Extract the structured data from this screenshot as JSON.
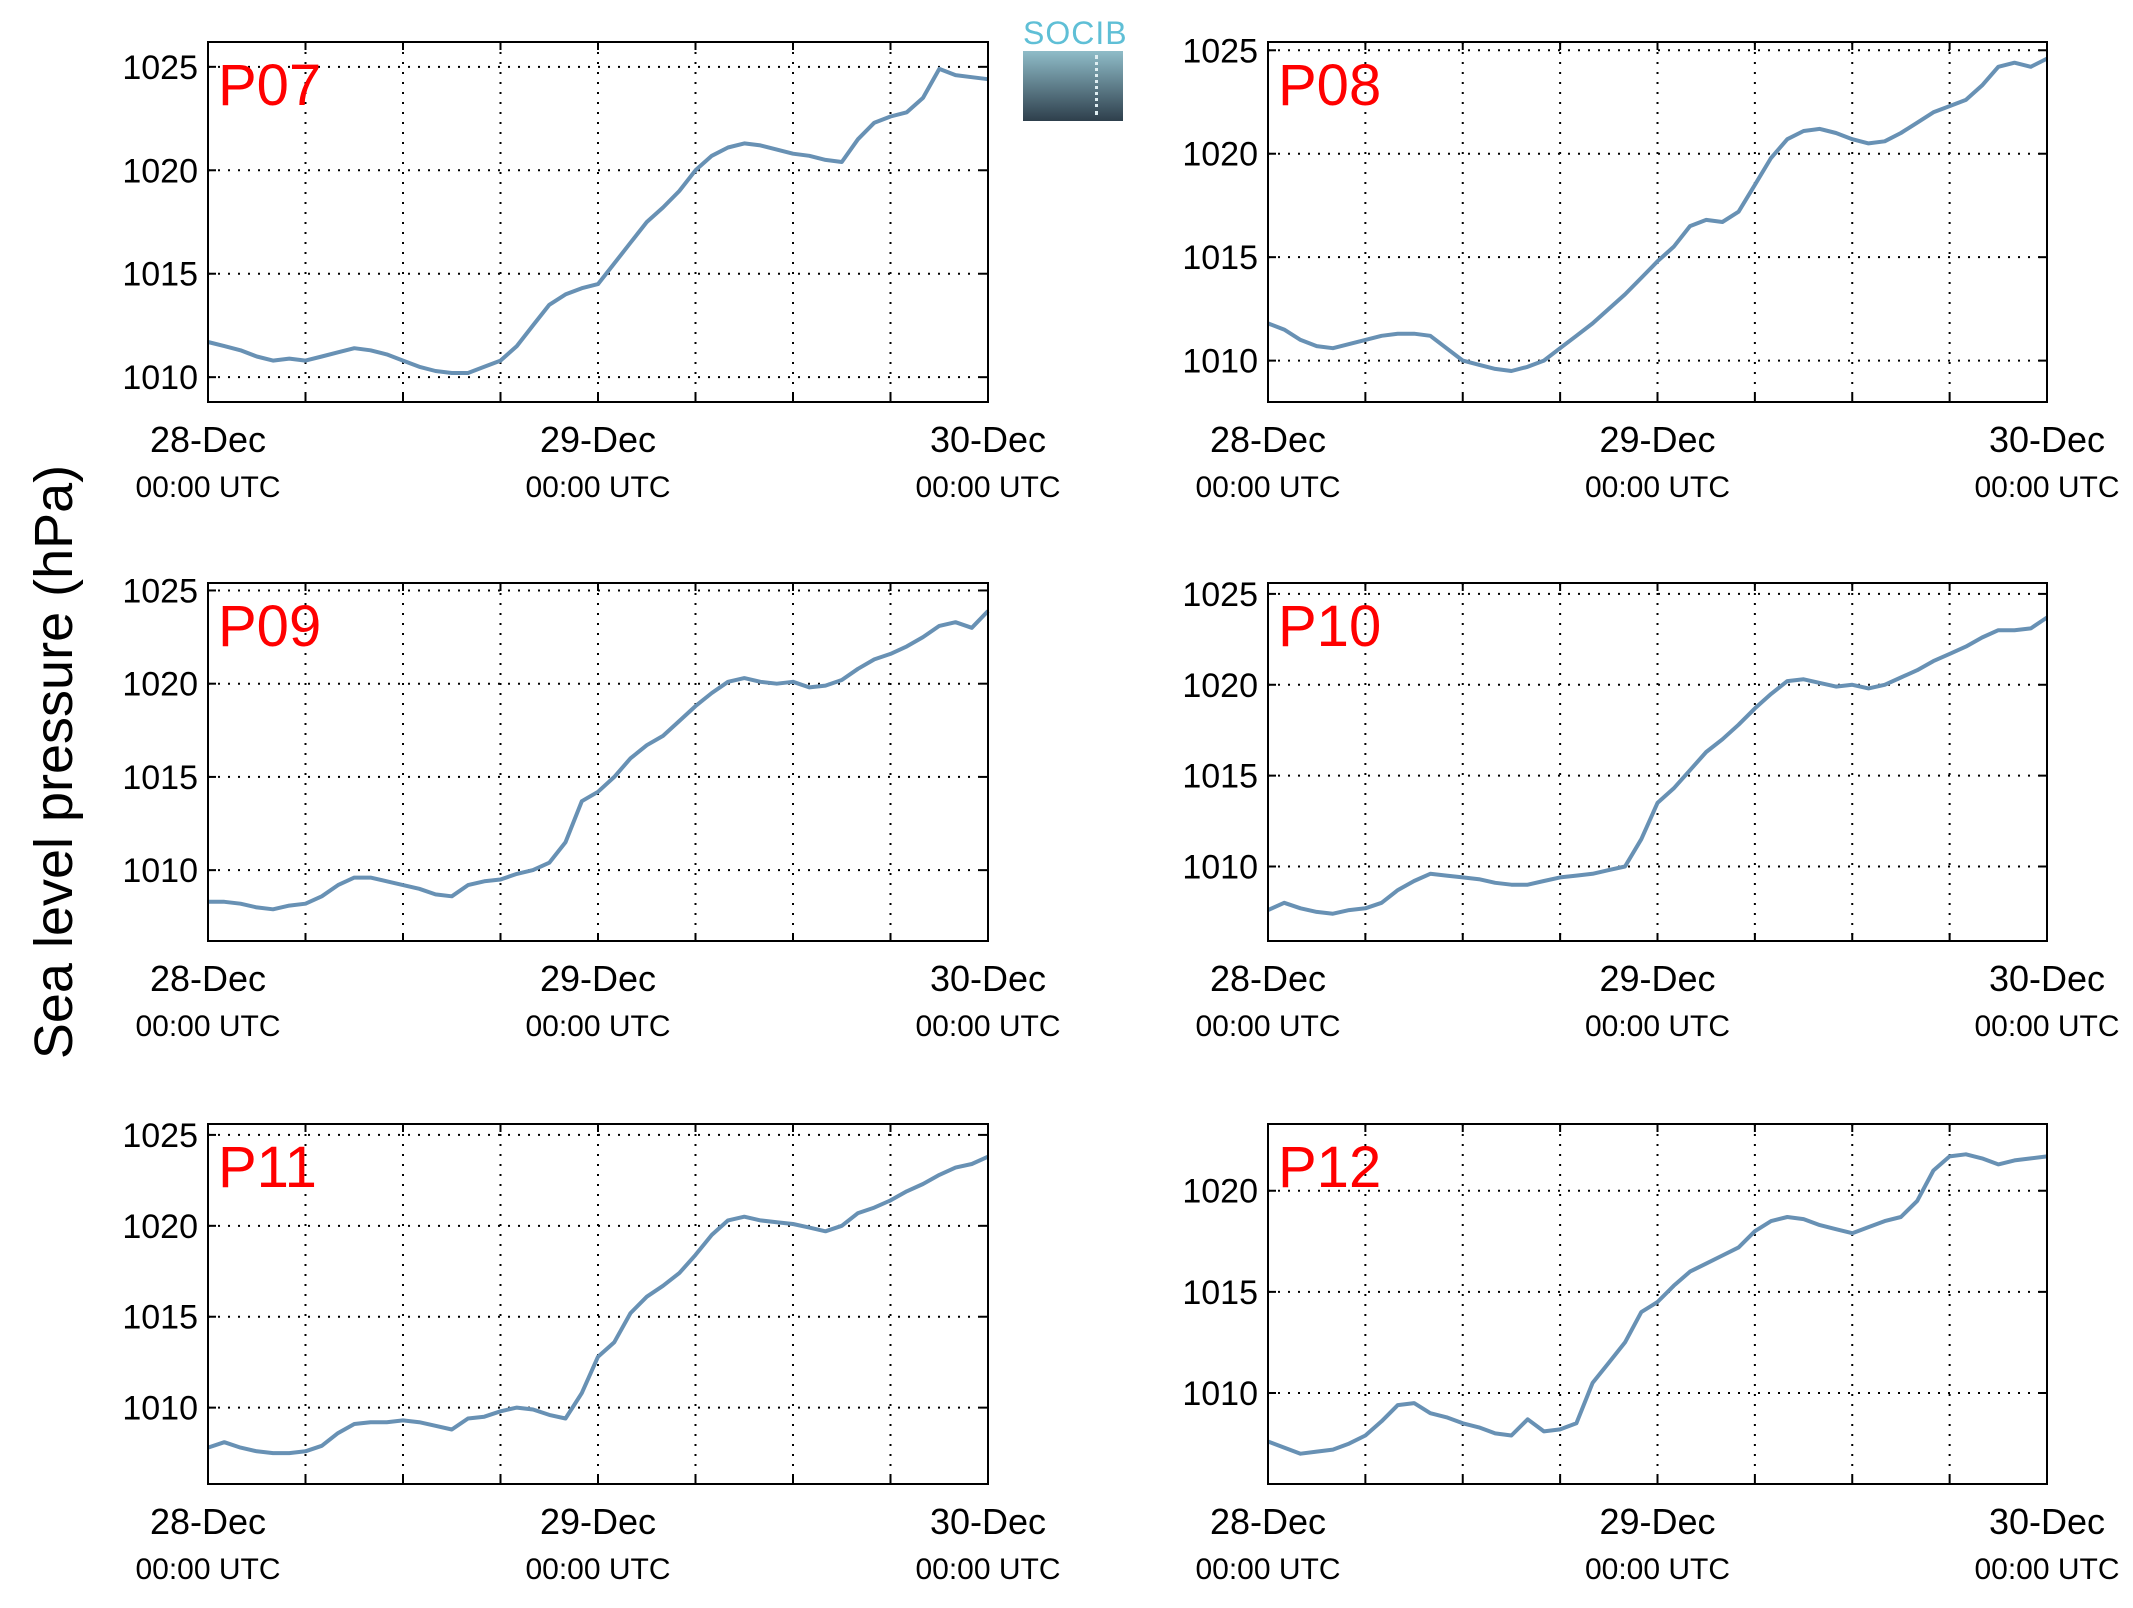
{
  "ylabel": "Sea level pressure (hPa)",
  "logo": {
    "text": "SOCIB"
  },
  "colors": {
    "line": "#6891b4",
    "panel_label": "#ff0000",
    "axis": "#000000",
    "grid": "#000000"
  },
  "chart_data": [
    {
      "type": "line",
      "label": "P07",
      "yticks": [
        1010,
        1015,
        1020,
        1025
      ],
      "ylim": [
        1008.8,
        1026.2
      ],
      "xlim": [
        0,
        48
      ],
      "xticks": [
        {
          "x": 0,
          "date": "28-Dec",
          "time": "00:00 UTC"
        },
        {
          "x": 24,
          "date": "29-Dec",
          "time": "00:00 UTC"
        },
        {
          "x": 48,
          "date": "30-Dec",
          "time": "00:00 UTC"
        }
      ],
      "grid": true,
      "series": [
        {
          "x": [
            0,
            1,
            2,
            3,
            4,
            5,
            6,
            7,
            8,
            9,
            10,
            11,
            12,
            13,
            14,
            15,
            16,
            17,
            18,
            19,
            20,
            21,
            22,
            23,
            24,
            25,
            26,
            27,
            28,
            29,
            30,
            31,
            32,
            33,
            34,
            35,
            36,
            37,
            38,
            39,
            40,
            41,
            42,
            43,
            44,
            45,
            46,
            47,
            48
          ],
          "y": [
            1011.7,
            1011.5,
            1011.3,
            1011.0,
            1010.8,
            1010.9,
            1010.8,
            1011.0,
            1011.2,
            1011.4,
            1011.3,
            1011.1,
            1010.8,
            1010.5,
            1010.3,
            1010.2,
            1010.2,
            1010.5,
            1010.8,
            1011.5,
            1012.5,
            1013.5,
            1014.0,
            1014.3,
            1014.5,
            1015.5,
            1016.5,
            1017.5,
            1018.2,
            1019.0,
            1020.0,
            1020.7,
            1021.1,
            1021.3,
            1021.2,
            1021.0,
            1020.8,
            1020.7,
            1020.5,
            1020.4,
            1021.5,
            1022.3,
            1022.6,
            1022.8,
            1023.5,
            1024.9,
            1024.6,
            1024.5,
            1024.4
          ]
        }
      ]
    },
    {
      "type": "line",
      "label": "P08",
      "yticks": [
        1010,
        1015,
        1020,
        1025
      ],
      "ylim": [
        1008.0,
        1025.4
      ],
      "xlim": [
        0,
        48
      ],
      "xticks": [
        {
          "x": 0,
          "date": "28-Dec",
          "time": "00:00 UTC"
        },
        {
          "x": 24,
          "date": "29-Dec",
          "time": "00:00 UTC"
        },
        {
          "x": 48,
          "date": "30-Dec",
          "time": "00:00 UTC"
        }
      ],
      "grid": true,
      "series": [
        {
          "x": [
            0,
            1,
            2,
            3,
            4,
            5,
            6,
            7,
            8,
            9,
            10,
            11,
            12,
            13,
            14,
            15,
            16,
            17,
            18,
            19,
            20,
            21,
            22,
            23,
            24,
            25,
            26,
            27,
            28,
            29,
            30,
            31,
            32,
            33,
            34,
            35,
            36,
            37,
            38,
            39,
            40,
            41,
            42,
            43,
            44,
            45,
            46,
            47,
            48
          ],
          "y": [
            1011.8,
            1011.5,
            1011.0,
            1010.7,
            1010.6,
            1010.8,
            1011.0,
            1011.2,
            1011.3,
            1011.3,
            1011.2,
            1010.6,
            1010.0,
            1009.8,
            1009.6,
            1009.5,
            1009.7,
            1010.0,
            1010.6,
            1011.2,
            1011.8,
            1012.5,
            1013.2,
            1014.0,
            1014.8,
            1015.5,
            1016.5,
            1016.8,
            1016.7,
            1017.2,
            1018.5,
            1019.8,
            1020.7,
            1021.1,
            1021.2,
            1021.0,
            1020.7,
            1020.5,
            1020.6,
            1021.0,
            1021.5,
            1022.0,
            1022.3,
            1022.6,
            1023.3,
            1024.2,
            1024.4,
            1024.2,
            1024.6
          ]
        }
      ]
    },
    {
      "type": "line",
      "label": "P09",
      "yticks": [
        1010,
        1015,
        1020,
        1025
      ],
      "ylim": [
        1006.2,
        1025.4
      ],
      "xlim": [
        0,
        48
      ],
      "xticks": [
        {
          "x": 0,
          "date": "28-Dec",
          "time": "00:00 UTC"
        },
        {
          "x": 24,
          "date": "29-Dec",
          "time": "00:00 UTC"
        },
        {
          "x": 48,
          "date": "30-Dec",
          "time": "00:00 UTC"
        }
      ],
      "grid": true,
      "series": [
        {
          "x": [
            0,
            1,
            2,
            3,
            4,
            5,
            6,
            7,
            8,
            9,
            10,
            11,
            12,
            13,
            14,
            15,
            16,
            17,
            18,
            19,
            20,
            21,
            22,
            23,
            24,
            25,
            26,
            27,
            28,
            29,
            30,
            31,
            32,
            33,
            34,
            35,
            36,
            37,
            38,
            39,
            40,
            41,
            42,
            43,
            44,
            45,
            46,
            47,
            48
          ],
          "y": [
            1008.3,
            1008.3,
            1008.2,
            1008.0,
            1007.9,
            1008.1,
            1008.2,
            1008.6,
            1009.2,
            1009.6,
            1009.6,
            1009.4,
            1009.2,
            1009.0,
            1008.7,
            1008.6,
            1009.2,
            1009.4,
            1009.5,
            1009.8,
            1010.0,
            1010.4,
            1011.5,
            1013.7,
            1014.2,
            1015.0,
            1016.0,
            1016.7,
            1017.2,
            1018.0,
            1018.8,
            1019.5,
            1020.1,
            1020.3,
            1020.1,
            1020.0,
            1020.1,
            1019.8,
            1019.9,
            1020.2,
            1020.8,
            1021.3,
            1021.6,
            1022.0,
            1022.5,
            1023.1,
            1023.3,
            1023.0,
            1023.9
          ]
        }
      ]
    },
    {
      "type": "line",
      "label": "P10",
      "yticks": [
        1010,
        1015,
        1020,
        1025
      ],
      "ylim": [
        1005.9,
        1025.6
      ],
      "xlim": [
        0,
        48
      ],
      "xticks": [
        {
          "x": 0,
          "date": "28-Dec",
          "time": "00:00 UTC"
        },
        {
          "x": 24,
          "date": "29-Dec",
          "time": "00:00 UTC"
        },
        {
          "x": 48,
          "date": "30-Dec",
          "time": "00:00 UTC"
        }
      ],
      "grid": true,
      "series": [
        {
          "x": [
            0,
            1,
            2,
            3,
            4,
            5,
            6,
            7,
            8,
            9,
            10,
            11,
            12,
            13,
            14,
            15,
            16,
            17,
            18,
            19,
            20,
            21,
            22,
            23,
            24,
            25,
            26,
            27,
            28,
            29,
            30,
            31,
            32,
            33,
            34,
            35,
            36,
            37,
            38,
            39,
            40,
            41,
            42,
            43,
            44,
            45,
            46,
            47,
            48
          ],
          "y": [
            1007.6,
            1008.0,
            1007.7,
            1007.5,
            1007.4,
            1007.6,
            1007.7,
            1008.0,
            1008.7,
            1009.2,
            1009.6,
            1009.5,
            1009.4,
            1009.3,
            1009.1,
            1009.0,
            1009.0,
            1009.2,
            1009.4,
            1009.5,
            1009.6,
            1009.8,
            1010.0,
            1011.5,
            1013.5,
            1014.3,
            1015.3,
            1016.3,
            1017.0,
            1017.8,
            1018.7,
            1019.5,
            1020.2,
            1020.3,
            1020.1,
            1019.9,
            1020.0,
            1019.8,
            1020.0,
            1020.4,
            1020.8,
            1021.3,
            1021.7,
            1022.1,
            1022.6,
            1023.0,
            1023.0,
            1023.1,
            1023.7
          ]
        }
      ]
    },
    {
      "type": "line",
      "label": "P11",
      "yticks": [
        1010,
        1015,
        1020,
        1025
      ],
      "ylim": [
        1005.8,
        1025.6
      ],
      "xlim": [
        0,
        48
      ],
      "xticks": [
        {
          "x": 0,
          "date": "28-Dec",
          "time": "00:00 UTC"
        },
        {
          "x": 24,
          "date": "29-Dec",
          "time": "00:00 UTC"
        },
        {
          "x": 48,
          "date": "30-Dec",
          "time": "00:00 UTC"
        }
      ],
      "grid": true,
      "series": [
        {
          "x": [
            0,
            1,
            2,
            3,
            4,
            5,
            6,
            7,
            8,
            9,
            10,
            11,
            12,
            13,
            14,
            15,
            16,
            17,
            18,
            19,
            20,
            21,
            22,
            23,
            24,
            25,
            26,
            27,
            28,
            29,
            30,
            31,
            32,
            33,
            34,
            35,
            36,
            37,
            38,
            39,
            40,
            41,
            42,
            43,
            44,
            45,
            46,
            47,
            48
          ],
          "y": [
            1007.8,
            1008.1,
            1007.8,
            1007.6,
            1007.5,
            1007.5,
            1007.6,
            1007.9,
            1008.6,
            1009.1,
            1009.2,
            1009.2,
            1009.3,
            1009.2,
            1009.0,
            1008.8,
            1009.4,
            1009.5,
            1009.8,
            1010.0,
            1009.9,
            1009.6,
            1009.4,
            1010.8,
            1012.8,
            1013.6,
            1015.2,
            1016.1,
            1016.7,
            1017.4,
            1018.4,
            1019.5,
            1020.3,
            1020.5,
            1020.3,
            1020.2,
            1020.1,
            1019.9,
            1019.7,
            1020.0,
            1020.7,
            1021.0,
            1021.4,
            1021.9,
            1022.3,
            1022.8,
            1023.2,
            1023.4,
            1023.8
          ]
        }
      ]
    },
    {
      "type": "line",
      "label": "P12",
      "yticks": [
        1010,
        1015,
        1020
      ],
      "ylim": [
        1005.5,
        1023.3
      ],
      "xlim": [
        0,
        48
      ],
      "xticks": [
        {
          "x": 0,
          "date": "28-Dec",
          "time": "00:00 UTC"
        },
        {
          "x": 24,
          "date": "29-Dec",
          "time": "00:00 UTC"
        },
        {
          "x": 48,
          "date": "30-Dec",
          "time": "00:00 UTC"
        }
      ],
      "grid": true,
      "series": [
        {
          "x": [
            0,
            1,
            2,
            3,
            4,
            5,
            6,
            7,
            8,
            9,
            10,
            11,
            12,
            13,
            14,
            15,
            16,
            17,
            18,
            19,
            20,
            21,
            22,
            23,
            24,
            25,
            26,
            27,
            28,
            29,
            30,
            31,
            32,
            33,
            34,
            35,
            36,
            37,
            38,
            39,
            40,
            41,
            42,
            43,
            44,
            45,
            46,
            47,
            48
          ],
          "y": [
            1007.6,
            1007.3,
            1007.0,
            1007.1,
            1007.2,
            1007.5,
            1007.9,
            1008.6,
            1009.4,
            1009.5,
            1009.0,
            1008.8,
            1008.5,
            1008.3,
            1008.0,
            1007.9,
            1008.7,
            1008.1,
            1008.2,
            1008.5,
            1010.5,
            1011.5,
            1012.5,
            1014.0,
            1014.5,
            1015.3,
            1016.0,
            1016.4,
            1016.8,
            1017.2,
            1018.0,
            1018.5,
            1018.7,
            1018.6,
            1018.3,
            1018.1,
            1017.9,
            1018.2,
            1018.5,
            1018.7,
            1019.5,
            1021.0,
            1021.7,
            1021.8,
            1021.6,
            1021.3,
            1021.5,
            1021.6,
            1021.7
          ]
        }
      ]
    }
  ]
}
